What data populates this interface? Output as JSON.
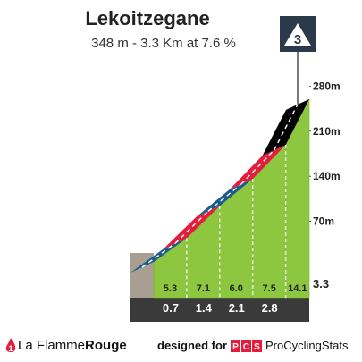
{
  "header": {
    "title": "Lekoitzegane",
    "subtitle": "348 m - 3.3 Km at 7.6 %",
    "category_badge": "3"
  },
  "chart_data": {
    "type": "area",
    "title": "Lekoitzegane",
    "x_unit": "km",
    "segments_km": [
      0,
      0.5,
      1.0,
      1.5,
      2.0,
      2.5,
      3.0,
      3.3
    ],
    "segment_gradient_labels": [
      "5.3",
      "7.1",
      "6.0",
      "7.5",
      "14.1"
    ],
    "segment_gradients": [
      5.3,
      7.1,
      6.0,
      7.5,
      14.1
    ],
    "km_marker_labels": [
      "0.7",
      "1.4",
      "2.1",
      "2.8",
      "3.3"
    ],
    "km_markers": [
      0.7,
      1.4,
      2.1,
      2.8,
      3.3
    ],
    "elevation_tick_labels": [
      "70m",
      "140m",
      "210m",
      "280m"
    ],
    "elevation_ticks": [
      70,
      140,
      210,
      280
    ],
    "profile_points": [
      {
        "km": 0.0,
        "elev": 0
      },
      {
        "km": 0.7,
        "elev": 37
      },
      {
        "km": 1.4,
        "elev": 87
      },
      {
        "km": 2.1,
        "elev": 129
      },
      {
        "km": 2.8,
        "elev": 182
      },
      {
        "km": 3.3,
        "elev": 253
      }
    ],
    "stripe_colors": [
      "#1d5a8e",
      "#e31d3c",
      "#1d5a8e",
      "#e31d3c",
      "#000000"
    ]
  },
  "footer": {
    "brand_prefix": "La Flamme",
    "brand_bold": "Rouge",
    "designed_for": "designed for",
    "pcs_badge": "PCS",
    "pcs_name": "ProCyclingStats"
  },
  "colors": {
    "grass": "#8dc63f",
    "dark_base": "#3a3a3a",
    "stone": "#a89f92",
    "badge_bg": "#2b3a4a"
  }
}
